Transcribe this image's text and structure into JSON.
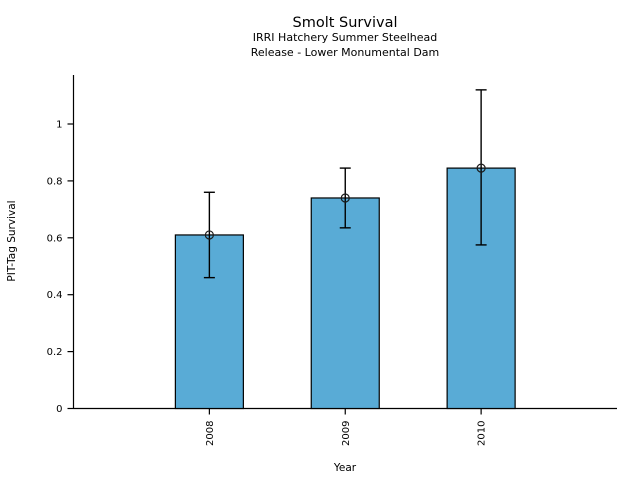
{
  "figure": {
    "title": "Smolt Survival",
    "subtitle1": "IRRI Hatchery Summer Steelhead",
    "subtitle2": "Release - Lower Monumental Dam"
  },
  "chart_data": {
    "type": "bar",
    "title": "Smolt Survival",
    "subtitle": [
      "IRRI Hatchery Summer Steelhead",
      "Release - Lower Monumental Dam"
    ],
    "xlabel": "Year",
    "ylabel": "PIT-Tag Survival",
    "categories": [
      "2008",
      "2009",
      "2010"
    ],
    "values": [
      0.61,
      0.74,
      0.845
    ],
    "error_low": [
      0.46,
      0.635,
      0.575
    ],
    "error_high": [
      0.76,
      0.845,
      1.12
    ],
    "yticks": [
      0,
      0.2,
      0.4,
      0.6,
      0.8,
      1
    ],
    "ylim": [
      0,
      1.17
    ],
    "grid": false,
    "legend": false,
    "marker": "open-circle",
    "bar_color": "#59abd6",
    "bar_edge_color": "#000000",
    "errorbar_color": "#000000",
    "text_color": "#000000"
  }
}
